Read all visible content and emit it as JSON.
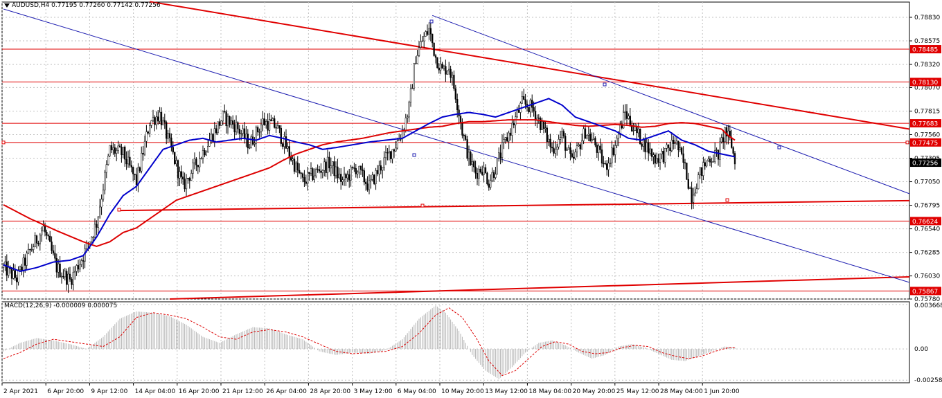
{
  "header": {
    "symbol_timeframe": "AUDUSD,H4",
    "quote": "0.77195 0.77260 0.77142 0.77256"
  },
  "macd": {
    "label": "MACD(12,26,9) -0.000009 0.000075"
  },
  "colors": {
    "background": "#ffffff",
    "grid": "#c0c0c0",
    "candle": "#000000",
    "ma_fast": "#0000cc",
    "ma_slow": "#dd0000",
    "trendline_red": "#e00000",
    "trendline_blue": "#1c1cb0",
    "hline": "#e00000",
    "price_tag_bg": "#e00000",
    "price_tag_text": "#ffffff",
    "current_tag_bg": "#000000",
    "macd_hist": "#b4b4b4",
    "macd_signal": "#dd0000"
  },
  "chart_data": {
    "type": "candlestick",
    "price_axis": {
      "ylim": [
        0.7578,
        0.7892
      ],
      "ticks": [
        "0.78830",
        "0.78575",
        "0.78320",
        "0.78070",
        "0.77815",
        "0.77560",
        "0.77305",
        "0.77050",
        "0.76795",
        "0.76540",
        "0.76285",
        "0.76030",
        "0.75780"
      ]
    },
    "time_axis": {
      "labels": [
        "2 Apr 2021",
        "6 Apr 20:00",
        "9 Apr 12:00",
        "14 Apr 04:00",
        "16 Apr 20:00",
        "21 Apr 12:00",
        "26 Apr 04:00",
        "28 Apr 20:00",
        "3 May 12:00",
        "6 May 04:00",
        "10 May 20:00",
        "13 May 12:00",
        "18 May 04:00",
        "20 May 20:00",
        "25 May 12:00",
        "28 May 04:00",
        "1 Jun 20:00"
      ]
    },
    "price_levels": [
      {
        "value": 0.78485,
        "label": "0.78485"
      },
      {
        "value": 0.7813,
        "label": "0.78130"
      },
      {
        "value": 0.77683,
        "label": "0.77683"
      },
      {
        "value": 0.77475,
        "label": "0.77475"
      },
      {
        "value": 0.76624,
        "label": "0.76624"
      },
      {
        "value": 0.75867,
        "label": "0.75867"
      }
    ],
    "current_price": {
      "value": 0.77256,
      "label": "0.77256"
    },
    "price_anchors": [
      [
        0,
        0.7612
      ],
      [
        8,
        0.76
      ],
      [
        16,
        0.763
      ],
      [
        24,
        0.7655
      ],
      [
        32,
        0.7612
      ],
      [
        40,
        0.7598
      ],
      [
        48,
        0.7625
      ],
      [
        56,
        0.766
      ],
      [
        60,
        0.77
      ],
      [
        64,
        0.774
      ],
      [
        72,
        0.7735
      ],
      [
        80,
        0.7705
      ],
      [
        88,
        0.777
      ],
      [
        94,
        0.7778
      ],
      [
        100,
        0.7745
      ],
      [
        108,
        0.77
      ],
      [
        116,
        0.7725
      ],
      [
        124,
        0.775
      ],
      [
        132,
        0.7775
      ],
      [
        140,
        0.7765
      ],
      [
        148,
        0.7745
      ],
      [
        156,
        0.777
      ],
      [
        164,
        0.7765
      ],
      [
        172,
        0.7735
      ],
      [
        180,
        0.7705
      ],
      [
        188,
        0.7715
      ],
      [
        196,
        0.7725
      ],
      [
        204,
        0.7705
      ],
      [
        212,
        0.772
      ],
      [
        220,
        0.77
      ],
      [
        228,
        0.7725
      ],
      [
        236,
        0.7745
      ],
      [
        240,
        0.776
      ],
      [
        244,
        0.7785
      ],
      [
        248,
        0.784
      ],
      [
        252,
        0.7858
      ],
      [
        256,
        0.787
      ],
      [
        260,
        0.784
      ],
      [
        264,
        0.7825
      ],
      [
        268,
        0.783
      ],
      [
        272,
        0.78
      ],
      [
        276,
        0.776
      ],
      [
        280,
        0.773
      ],
      [
        284,
        0.7715
      ],
      [
        288,
        0.772
      ],
      [
        292,
        0.7705
      ],
      [
        296,
        0.772
      ],
      [
        300,
        0.774
      ],
      [
        306,
        0.7765
      ],
      [
        312,
        0.779
      ],
      [
        318,
        0.7785
      ],
      [
        324,
        0.7765
      ],
      [
        330,
        0.774
      ],
      [
        336,
        0.7755
      ],
      [
        342,
        0.7725
      ],
      [
        350,
        0.776
      ],
      [
        356,
        0.7745
      ],
      [
        362,
        0.772
      ],
      [
        368,
        0.7745
      ],
      [
        374,
        0.778
      ],
      [
        380,
        0.776
      ],
      [
        386,
        0.7745
      ],
      [
        392,
        0.773
      ],
      [
        398,
        0.7735
      ],
      [
        404,
        0.775
      ],
      [
        410,
        0.772
      ],
      [
        414,
        0.769
      ],
      [
        418,
        0.771
      ],
      [
        424,
        0.773
      ],
      [
        430,
        0.7735
      ],
      [
        434,
        0.776
      ],
      [
        438,
        0.7745
      ],
      [
        440,
        0.7725
      ]
    ],
    "ma_fast_anchors": [
      [
        0,
        0.7615
      ],
      [
        10,
        0.7608
      ],
      [
        20,
        0.7612
      ],
      [
        30,
        0.7618
      ],
      [
        40,
        0.762
      ],
      [
        48,
        0.7625
      ],
      [
        56,
        0.7645
      ],
      [
        64,
        0.767
      ],
      [
        72,
        0.769
      ],
      [
        80,
        0.77
      ],
      [
        88,
        0.772
      ],
      [
        96,
        0.774
      ],
      [
        104,
        0.7745
      ],
      [
        112,
        0.775
      ],
      [
        120,
        0.7752
      ],
      [
        128,
        0.7748
      ],
      [
        136,
        0.775
      ],
      [
        144,
        0.7752
      ],
      [
        152,
        0.775
      ],
      [
        160,
        0.7755
      ],
      [
        168,
        0.7752
      ],
      [
        176,
        0.7748
      ],
      [
        184,
        0.7745
      ],
      [
        192,
        0.774
      ],
      [
        200,
        0.7742
      ],
      [
        210,
        0.7745
      ],
      [
        220,
        0.7748
      ],
      [
        230,
        0.775
      ],
      [
        240,
        0.7752
      ],
      [
        248,
        0.776
      ],
      [
        256,
        0.7768
      ],
      [
        264,
        0.7775
      ],
      [
        272,
        0.7778
      ],
      [
        280,
        0.778
      ],
      [
        288,
        0.7778
      ],
      [
        296,
        0.7775
      ],
      [
        304,
        0.778
      ],
      [
        312,
        0.7785
      ],
      [
        320,
        0.779
      ],
      [
        328,
        0.7795
      ],
      [
        336,
        0.7788
      ],
      [
        344,
        0.7775
      ],
      [
        352,
        0.777
      ],
      [
        360,
        0.7765
      ],
      [
        368,
        0.776
      ],
      [
        376,
        0.7752
      ],
      [
        384,
        0.775
      ],
      [
        392,
        0.7755
      ],
      [
        400,
        0.776
      ],
      [
        408,
        0.775
      ],
      [
        416,
        0.7745
      ],
      [
        424,
        0.7738
      ],
      [
        432,
        0.7735
      ],
      [
        440,
        0.7732
      ]
    ],
    "ma_slow_anchors": [
      [
        0,
        0.768
      ],
      [
        16,
        0.7665
      ],
      [
        32,
        0.7652
      ],
      [
        48,
        0.764
      ],
      [
        56,
        0.7635
      ],
      [
        64,
        0.764
      ],
      [
        72,
        0.765
      ],
      [
        80,
        0.7655
      ],
      [
        88,
        0.7665
      ],
      [
        96,
        0.7675
      ],
      [
        104,
        0.7685
      ],
      [
        112,
        0.769
      ],
      [
        120,
        0.7695
      ],
      [
        128,
        0.77
      ],
      [
        136,
        0.7705
      ],
      [
        144,
        0.771
      ],
      [
        152,
        0.7715
      ],
      [
        160,
        0.772
      ],
      [
        168,
        0.7728
      ],
      [
        176,
        0.7735
      ],
      [
        184,
        0.774
      ],
      [
        192,
        0.7745
      ],
      [
        200,
        0.7748
      ],
      [
        208,
        0.775
      ],
      [
        216,
        0.7752
      ],
      [
        224,
        0.7755
      ],
      [
        232,
        0.7758
      ],
      [
        240,
        0.776
      ],
      [
        248,
        0.7762
      ],
      [
        256,
        0.7764
      ],
      [
        264,
        0.7765
      ],
      [
        272,
        0.7768
      ],
      [
        280,
        0.777
      ],
      [
        288,
        0.777
      ],
      [
        296,
        0.7771
      ],
      [
        304,
        0.7772
      ],
      [
        312,
        0.7772
      ],
      [
        320,
        0.7772
      ],
      [
        328,
        0.777
      ],
      [
        336,
        0.7768
      ],
      [
        344,
        0.7766
      ],
      [
        352,
        0.7765
      ],
      [
        360,
        0.7766
      ],
      [
        368,
        0.7767
      ],
      [
        376,
        0.7766
      ],
      [
        384,
        0.7764
      ],
      [
        392,
        0.7765
      ],
      [
        400,
        0.7768
      ],
      [
        408,
        0.7769
      ],
      [
        416,
        0.7768
      ],
      [
        424,
        0.7765
      ],
      [
        432,
        0.7762
      ],
      [
        436,
        0.7755
      ],
      [
        440,
        0.775
      ]
    ],
    "trendlines": [
      {
        "color": "red",
        "width": 2,
        "from": [
          88,
          0.79
        ],
        "to": [
          546,
          0.7762
        ]
      },
      {
        "color": "red",
        "width": 2,
        "from": [
          70,
          0.76738
        ],
        "to": [
          546,
          0.76845
        ]
      },
      {
        "color": "red",
        "width": 2,
        "from": [
          100,
          0.7578
        ],
        "to": [
          546,
          0.7602
        ]
      },
      {
        "color": "blue",
        "width": 1,
        "from": [
          0,
          0.7892
        ],
        "to": [
          546,
          0.7596
        ]
      },
      {
        "color": "blue",
        "width": 1,
        "from": [
          258,
          0.7885
        ],
        "to": [
          546,
          0.7692
        ]
      }
    ],
    "macd_axis": {
      "ylim": [
        -0.0028,
        0.0039
      ],
      "ticks": [
        "0.003668",
        "0.00",
        "-0.002587"
      ]
    },
    "macd_hist_anchors": [
      [
        0,
        -0.0002
      ],
      [
        10,
        0.0005
      ],
      [
        20,
        0.0009
      ],
      [
        30,
        0.0007
      ],
      [
        40,
        0.0004
      ],
      [
        50,
        0.0
      ],
      [
        60,
        0.001
      ],
      [
        70,
        0.0025
      ],
      [
        80,
        0.0031
      ],
      [
        90,
        0.003
      ],
      [
        100,
        0.0027
      ],
      [
        110,
        0.002
      ],
      [
        120,
        0.001
      ],
      [
        130,
        0.0005
      ],
      [
        140,
        0.0012
      ],
      [
        150,
        0.0018
      ],
      [
        160,
        0.0017
      ],
      [
        170,
        0.0012
      ],
      [
        180,
        0.0008
      ],
      [
        190,
        -0.0002
      ],
      [
        200,
        -0.0005
      ],
      [
        210,
        -0.0003
      ],
      [
        220,
        -0.0004
      ],
      [
        230,
        -0.0001
      ],
      [
        240,
        0.0008
      ],
      [
        250,
        0.0025
      ],
      [
        260,
        0.0036
      ],
      [
        266,
        0.003
      ],
      [
        274,
        0.0015
      ],
      [
        282,
        -0.0005
      ],
      [
        290,
        -0.0018
      ],
      [
        298,
        -0.0025
      ],
      [
        306,
        -0.0015
      ],
      [
        314,
        -0.0003
      ],
      [
        322,
        0.0005
      ],
      [
        330,
        0.0007
      ],
      [
        338,
        0.0003
      ],
      [
        346,
        -0.0003
      ],
      [
        354,
        -0.0008
      ],
      [
        362,
        -0.0005
      ],
      [
        370,
        0.0002
      ],
      [
        378,
        0.0004
      ],
      [
        386,
        0.0001
      ],
      [
        394,
        -0.0004
      ],
      [
        402,
        -0.0009
      ],
      [
        410,
        -0.001
      ],
      [
        418,
        -0.0006
      ],
      [
        426,
        -0.0002
      ],
      [
        434,
        0.0002
      ],
      [
        440,
        0.0001
      ]
    ],
    "macd_signal_anchors": [
      [
        0,
        -0.0008
      ],
      [
        10,
        -0.0003
      ],
      [
        20,
        0.0004
      ],
      [
        30,
        0.0008
      ],
      [
        40,
        0.0006
      ],
      [
        50,
        0.0004
      ],
      [
        60,
        0.0002
      ],
      [
        70,
        0.001
      ],
      [
        80,
        0.0026
      ],
      [
        90,
        0.003
      ],
      [
        100,
        0.0028
      ],
      [
        110,
        0.0025
      ],
      [
        120,
        0.0018
      ],
      [
        130,
        0.001
      ],
      [
        140,
        0.0008
      ],
      [
        150,
        0.0014
      ],
      [
        160,
        0.0016
      ],
      [
        170,
        0.0014
      ],
      [
        180,
        0.001
      ],
      [
        190,
        0.0004
      ],
      [
        200,
        -0.0002
      ],
      [
        210,
        -0.0004
      ],
      [
        220,
        -0.0003
      ],
      [
        230,
        -0.0002
      ],
      [
        240,
        0.0002
      ],
      [
        250,
        0.0013
      ],
      [
        260,
        0.0028
      ],
      [
        268,
        0.0034
      ],
      [
        276,
        0.0026
      ],
      [
        284,
        0.001
      ],
      [
        292,
        -0.001
      ],
      [
        300,
        -0.0022
      ],
      [
        308,
        -0.0018
      ],
      [
        316,
        -0.0008
      ],
      [
        324,
        0.0002
      ],
      [
        332,
        0.0006
      ],
      [
        340,
        0.0004
      ],
      [
        348,
        -0.0002
      ],
      [
        356,
        -0.0004
      ],
      [
        364,
        -0.0003
      ],
      [
        372,
        0.0001
      ],
      [
        380,
        0.0003
      ],
      [
        388,
        0.0002
      ],
      [
        396,
        -0.0003
      ],
      [
        404,
        -0.0006
      ],
      [
        412,
        -0.0008
      ],
      [
        420,
        -0.0006
      ],
      [
        428,
        -0.0002
      ],
      [
        436,
        0.0001
      ],
      [
        440,
        0.0001
      ]
    ]
  }
}
